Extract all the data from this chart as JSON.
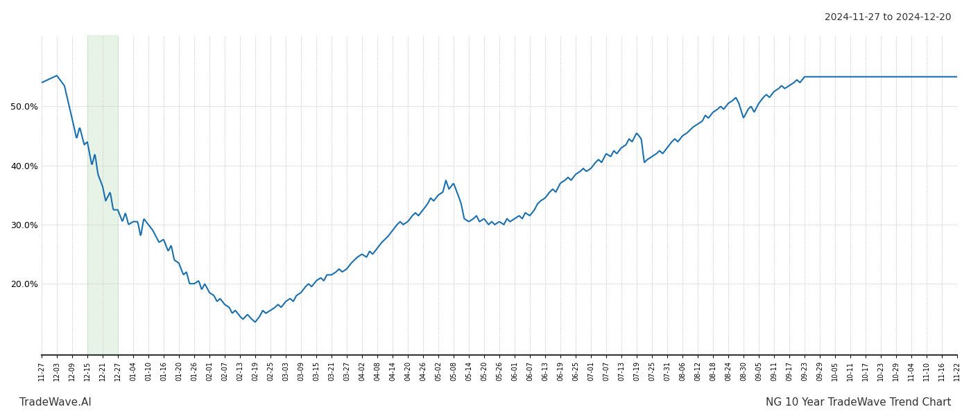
{
  "title_top_right": "2024-11-27 to 2024-12-20",
  "bottom_left": "TradeWave.AI",
  "bottom_right": "NG 10 Year TradeWave Trend Chart",
  "line_color": "#1a6faf",
  "line_width": 1.5,
  "shade_color": "#c8e6c8",
  "shade_alpha": 0.45,
  "background_color": "#ffffff",
  "grid_color": "#cccccc",
  "yticks": [
    20.0,
    30.0,
    40.0,
    50.0
  ],
  "x_labels": [
    "11-27",
    "12-03",
    "12-09",
    "12-15",
    "12-21",
    "12-27",
    "01-04",
    "01-10",
    "01-16",
    "01-20",
    "01-26",
    "02-01",
    "02-07",
    "02-13",
    "02-19",
    "02-25",
    "03-03",
    "03-09",
    "03-15",
    "03-21",
    "03-27",
    "04-02",
    "04-08",
    "04-14",
    "04-20",
    "04-26",
    "05-02",
    "05-08",
    "05-14",
    "05-20",
    "05-26",
    "06-01",
    "06-07",
    "06-13",
    "06-19",
    "06-25",
    "07-01",
    "07-07",
    "07-13",
    "07-19",
    "07-25",
    "07-31",
    "08-06",
    "08-12",
    "08-18",
    "08-24",
    "08-30",
    "09-05",
    "09-11",
    "09-17",
    "09-23",
    "09-29",
    "10-05",
    "10-11",
    "10-17",
    "10-23",
    "10-29",
    "11-04",
    "11-10",
    "11-16",
    "11-22"
  ],
  "shade_x_start_label": "12-15",
  "shade_x_end_label": "12-27",
  "key_points": [
    [
      0,
      54.0
    ],
    [
      1,
      55.2
    ],
    [
      1.5,
      53.5
    ],
    [
      2,
      48.0
    ],
    [
      2.3,
      44.5
    ],
    [
      2.5,
      46.5
    ],
    [
      2.8,
      43.5
    ],
    [
      3,
      44.0
    ],
    [
      3.3,
      40.0
    ],
    [
      3.5,
      42.0
    ],
    [
      3.7,
      38.5
    ],
    [
      4,
      36.5
    ],
    [
      4.2,
      34.0
    ],
    [
      4.5,
      35.5
    ],
    [
      4.7,
      32.5
    ],
    [
      5,
      32.5
    ],
    [
      5.3,
      30.5
    ],
    [
      5.5,
      32.0
    ],
    [
      5.7,
      30.0
    ],
    [
      6,
      30.5
    ],
    [
      6.3,
      30.5
    ],
    [
      6.5,
      28.0
    ],
    [
      6.7,
      31.0
    ],
    [
      7,
      30.0
    ],
    [
      7.3,
      29.0
    ],
    [
      7.7,
      27.0
    ],
    [
      8,
      27.5
    ],
    [
      8.3,
      25.5
    ],
    [
      8.5,
      26.5
    ],
    [
      8.7,
      24.0
    ],
    [
      9,
      23.5
    ],
    [
      9.3,
      21.5
    ],
    [
      9.5,
      22.0
    ],
    [
      9.7,
      20.0
    ],
    [
      10,
      20.0
    ],
    [
      10.3,
      20.5
    ],
    [
      10.5,
      19.0
    ],
    [
      10.7,
      20.0
    ],
    [
      11,
      18.5
    ],
    [
      11.3,
      18.0
    ],
    [
      11.5,
      17.0
    ],
    [
      11.7,
      17.5
    ],
    [
      12,
      16.5
    ],
    [
      12.3,
      16.0
    ],
    [
      12.5,
      15.0
    ],
    [
      12.7,
      15.5
    ],
    [
      13,
      14.5
    ],
    [
      13.2,
      14.0
    ],
    [
      13.5,
      14.8
    ],
    [
      13.7,
      14.2
    ],
    [
      14,
      13.5
    ],
    [
      14.3,
      14.5
    ],
    [
      14.5,
      15.5
    ],
    [
      14.7,
      15.0
    ],
    [
      15,
      15.5
    ],
    [
      15.3,
      16.0
    ],
    [
      15.5,
      16.5
    ],
    [
      15.7,
      16.0
    ],
    [
      16,
      17.0
    ],
    [
      16.3,
      17.5
    ],
    [
      16.5,
      17.0
    ],
    [
      16.7,
      18.0
    ],
    [
      17,
      18.5
    ],
    [
      17.3,
      19.5
    ],
    [
      17.5,
      20.0
    ],
    [
      17.7,
      19.5
    ],
    [
      18,
      20.5
    ],
    [
      18.3,
      21.0
    ],
    [
      18.5,
      20.5
    ],
    [
      18.7,
      21.5
    ],
    [
      19,
      21.5
    ],
    [
      19.3,
      22.0
    ],
    [
      19.5,
      22.5
    ],
    [
      19.7,
      22.0
    ],
    [
      20,
      22.5
    ],
    [
      20.3,
      23.5
    ],
    [
      20.5,
      24.0
    ],
    [
      20.7,
      24.5
    ],
    [
      21,
      25.0
    ],
    [
      21.3,
      24.5
    ],
    [
      21.5,
      25.5
    ],
    [
      21.7,
      25.0
    ],
    [
      22,
      26.0
    ],
    [
      22.3,
      27.0
    ],
    [
      22.5,
      27.5
    ],
    [
      22.7,
      28.0
    ],
    [
      23,
      29.0
    ],
    [
      23.3,
      30.0
    ],
    [
      23.5,
      30.5
    ],
    [
      23.7,
      30.0
    ],
    [
      24,
      30.5
    ],
    [
      24.3,
      31.5
    ],
    [
      24.5,
      32.0
    ],
    [
      24.7,
      31.5
    ],
    [
      25,
      32.5
    ],
    [
      25.3,
      33.5
    ],
    [
      25.5,
      34.5
    ],
    [
      25.7,
      34.0
    ],
    [
      26,
      35.0
    ],
    [
      26.3,
      35.5
    ],
    [
      26.5,
      37.5
    ],
    [
      26.7,
      36.0
    ],
    [
      27,
      37.0
    ],
    [
      27.3,
      35.0
    ],
    [
      27.5,
      33.5
    ],
    [
      27.7,
      31.0
    ],
    [
      28,
      30.5
    ],
    [
      28.3,
      31.0
    ],
    [
      28.5,
      31.5
    ],
    [
      28.7,
      30.5
    ],
    [
      29,
      31.0
    ],
    [
      29.3,
      30.0
    ],
    [
      29.5,
      30.5
    ],
    [
      29.7,
      30.0
    ],
    [
      30,
      30.5
    ],
    [
      30.3,
      30.0
    ],
    [
      30.5,
      31.0
    ],
    [
      30.7,
      30.5
    ],
    [
      31,
      31.0
    ],
    [
      31.3,
      31.5
    ],
    [
      31.5,
      31.0
    ],
    [
      31.7,
      32.0
    ],
    [
      32,
      31.5
    ],
    [
      32.3,
      32.5
    ],
    [
      32.5,
      33.5
    ],
    [
      32.7,
      34.0
    ],
    [
      33,
      34.5
    ],
    [
      33.3,
      35.5
    ],
    [
      33.5,
      36.0
    ],
    [
      33.7,
      35.5
    ],
    [
      34,
      37.0
    ],
    [
      34.3,
      37.5
    ],
    [
      34.5,
      38.0
    ],
    [
      34.7,
      37.5
    ],
    [
      35,
      38.5
    ],
    [
      35.3,
      39.0
    ],
    [
      35.5,
      39.5
    ],
    [
      35.7,
      39.0
    ],
    [
      36,
      39.5
    ],
    [
      36.3,
      40.5
    ],
    [
      36.5,
      41.0
    ],
    [
      36.7,
      40.5
    ],
    [
      37,
      42.0
    ],
    [
      37.3,
      41.5
    ],
    [
      37.5,
      42.5
    ],
    [
      37.7,
      42.0
    ],
    [
      38,
      43.0
    ],
    [
      38.3,
      43.5
    ],
    [
      38.5,
      44.5
    ],
    [
      38.7,
      44.0
    ],
    [
      39,
      45.5
    ],
    [
      39.3,
      44.5
    ],
    [
      39.5,
      40.5
    ],
    [
      39.7,
      41.0
    ],
    [
      40,
      41.5
    ],
    [
      40.3,
      42.0
    ],
    [
      40.5,
      42.5
    ],
    [
      40.7,
      42.0
    ],
    [
      41,
      43.0
    ],
    [
      41.3,
      44.0
    ],
    [
      41.5,
      44.5
    ],
    [
      41.7,
      44.0
    ],
    [
      42,
      45.0
    ],
    [
      42.3,
      45.5
    ],
    [
      42.5,
      46.0
    ],
    [
      42.7,
      46.5
    ],
    [
      43,
      47.0
    ],
    [
      43.3,
      47.5
    ],
    [
      43.5,
      48.5
    ],
    [
      43.7,
      48.0
    ],
    [
      44,
      49.0
    ],
    [
      44.3,
      49.5
    ],
    [
      44.5,
      50.0
    ],
    [
      44.7,
      49.5
    ],
    [
      45,
      50.5
    ],
    [
      45.3,
      51.0
    ],
    [
      45.5,
      51.5
    ],
    [
      45.7,
      50.5
    ],
    [
      46,
      48.0
    ],
    [
      46.3,
      49.5
    ],
    [
      46.5,
      50.0
    ],
    [
      46.7,
      49.0
    ],
    [
      47,
      50.5
    ],
    [
      47.3,
      51.5
    ],
    [
      47.5,
      52.0
    ],
    [
      47.7,
      51.5
    ],
    [
      48,
      52.5
    ],
    [
      48.3,
      53.0
    ],
    [
      48.5,
      53.5
    ],
    [
      48.7,
      53.0
    ],
    [
      49,
      53.5
    ],
    [
      49.3,
      54.0
    ],
    [
      49.5,
      54.5
    ],
    [
      49.7,
      54.0
    ],
    [
      50,
      55.0
    ]
  ]
}
